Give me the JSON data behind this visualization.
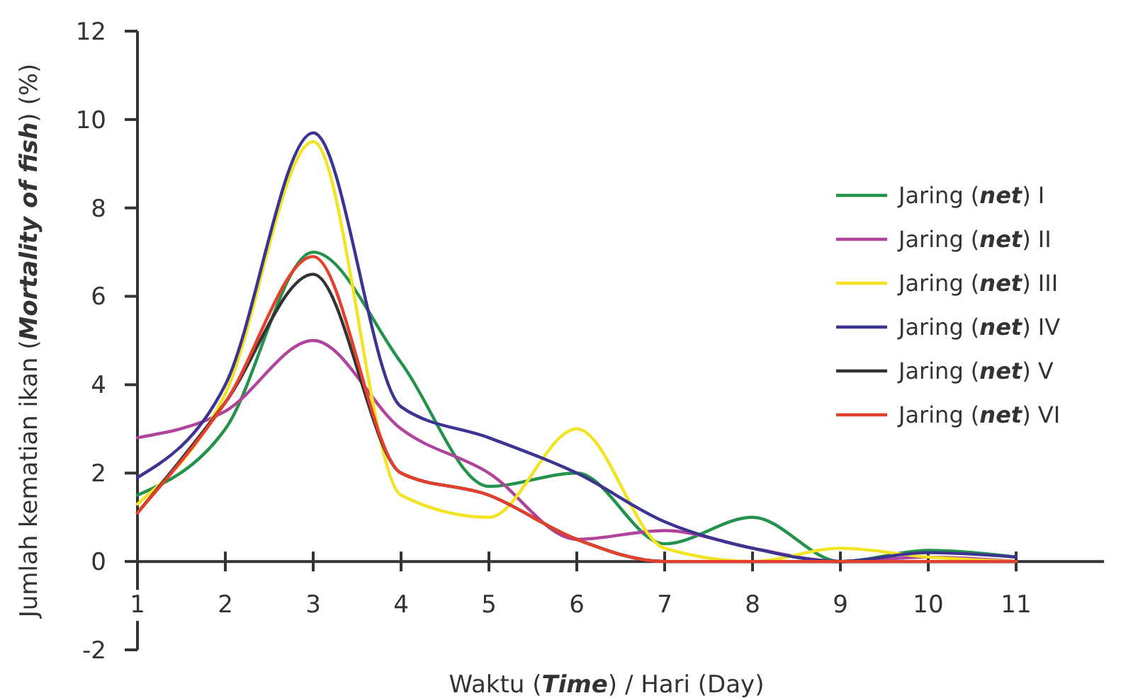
{
  "chart_data": {
    "type": "line",
    "xlabel": "Waktu (Time) / Hari (Day)",
    "ylabel": "Jumlah kematian ikan (Mortality of fish) (%)",
    "x": [
      1,
      2,
      3,
      4,
      5,
      6,
      7,
      8,
      9,
      10,
      11
    ],
    "xlim": [
      1,
      12
    ],
    "xticks": [
      1,
      2,
      3,
      4,
      5,
      6,
      7,
      8,
      9,
      10,
      11
    ],
    "ylim": [
      -2,
      12
    ],
    "yticks": [
      -2,
      0,
      2,
      4,
      6,
      8,
      10,
      12
    ],
    "grid": false,
    "legend": "right",
    "marker": "none",
    "line_style": "solid",
    "series": [
      {
        "name": "Jaring (net) I",
        "color": "#23924a",
        "values": [
          1.5,
          3.0,
          7.0,
          4.5,
          1.7,
          2.0,
          0.4,
          1.0,
          0,
          0.25,
          0.1
        ]
      },
      {
        "name": "Jaring (net) II",
        "color": "#b0449c",
        "values": [
          2.8,
          3.4,
          5.0,
          3.0,
          2.0,
          0.5,
          0.7,
          0.3,
          0,
          0.1,
          0
        ]
      },
      {
        "name": "Jaring (net) III",
        "color": "#f2e422",
        "values": [
          1.3,
          3.8,
          9.5,
          1.5,
          1.0,
          3.0,
          0.3,
          0,
          0.3,
          0.1,
          0
        ]
      },
      {
        "name": "Jaring (net) IV",
        "color": "#3b3591",
        "values": [
          1.9,
          4.0,
          9.7,
          3.5,
          2.8,
          2.0,
          0.9,
          0.3,
          0,
          0.2,
          0.1
        ]
      },
      {
        "name": "Jaring (net) V",
        "color": "#333333",
        "values": [
          1.1,
          3.6,
          6.5,
          2.0,
          1.5,
          0.5,
          0,
          0,
          0,
          0,
          0
        ]
      },
      {
        "name": "Jaring (net) VI",
        "color": "#e4412c",
        "values": [
          1.1,
          3.6,
          6.9,
          2.0,
          1.5,
          0.5,
          0,
          0,
          0,
          0,
          0
        ]
      }
    ]
  }
}
